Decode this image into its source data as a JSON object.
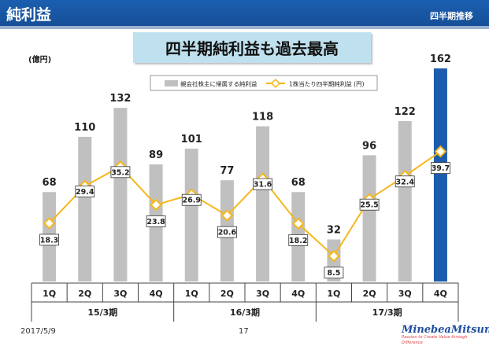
{
  "header": {
    "title": "純利益",
    "subtitle": "四半期推移"
  },
  "banner": {
    "text": "四半期純利益も過去最高"
  },
  "footer": {
    "date": "2017/5/9",
    "page": "17",
    "logo_text": "MinebeaMitsumi",
    "logo_tagline": "Passion to Create Value through Difference"
  },
  "colors": {
    "bar": "#c0c0c0",
    "bar_highlight": "#1c5cae",
    "line": "#f5b71b",
    "header": "#1b5fb0"
  },
  "chart_data": {
    "type": "bar",
    "unit_label": "(億円)",
    "categories": [
      "1Q",
      "2Q",
      "3Q",
      "4Q",
      "1Q",
      "2Q",
      "3Q",
      "4Q",
      "1Q",
      "2Q",
      "3Q",
      "4Q"
    ],
    "groups": [
      {
        "label": "15/3期",
        "start": 0,
        "end": 3
      },
      {
        "label": "16/3期",
        "start": 4,
        "end": 7
      },
      {
        "label": "17/3期",
        "start": 8,
        "end": 11
      }
    ],
    "series": [
      {
        "name": "親会社株主に帰属する純利益",
        "type": "bar",
        "axis": "left",
        "values": [
          68,
          110,
          132,
          89,
          101,
          77,
          118,
          68,
          32,
          96,
          122,
          162
        ]
      },
      {
        "name": "1株当たり四半期純利益 (円)",
        "type": "line",
        "axis": "right",
        "values": [
          18.3,
          29.4,
          35.2,
          23.8,
          26.9,
          20.6,
          31.6,
          18.2,
          8.5,
          25.5,
          32.4,
          39.7
        ]
      }
    ],
    "highlight_index": 11,
    "ylim_left": [
      0,
      162
    ],
    "ylim_right": [
      0,
      45
    ],
    "legend_position": "top"
  }
}
